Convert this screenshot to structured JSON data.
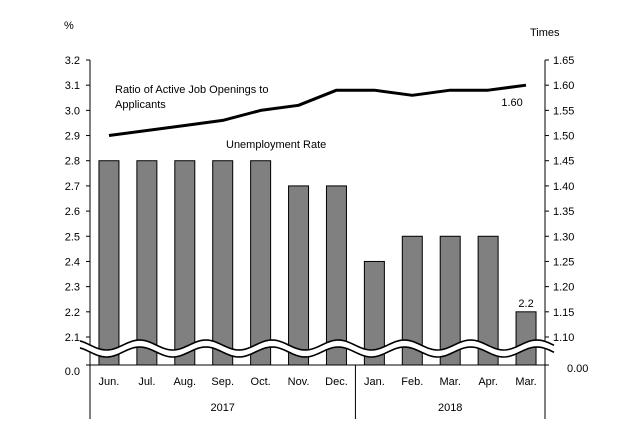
{
  "chart_data": {
    "type": "bar+line",
    "categories": [
      "Jun.",
      "Jul.",
      "Aug.",
      "Sep.",
      "Oct.",
      "Nov.",
      "Dec.",
      "Jan.",
      "Feb.",
      "Mar.",
      "Apr.",
      "Mar."
    ],
    "year_groups": [
      {
        "label": "2017",
        "start": 0,
        "end": 6
      },
      {
        "label": "2018",
        "start": 7,
        "end": 11
      }
    ],
    "left_axis": {
      "unit": "%",
      "ticks": [
        "3.2",
        "3.1",
        "3.0",
        "2.9",
        "2.8",
        "2.7",
        "2.6",
        "2.5",
        "2.4",
        "2.3",
        "2.2",
        "2.1"
      ],
      "zero_label": "0.0",
      "range": [
        2.1,
        3.2
      ],
      "broken": true
    },
    "right_axis": {
      "unit": "Times",
      "ticks": [
        "1.65",
        "1.60",
        "1.55",
        "1.50",
        "1.45",
        "1.40",
        "1.35",
        "1.30",
        "1.25",
        "1.20",
        "1.15",
        "1.10"
      ],
      "zero_label": "0.00",
      "range": [
        1.1,
        1.65
      ],
      "broken": true
    },
    "series": [
      {
        "name": "Unemployment Rate",
        "kind": "bar",
        "axis": "left",
        "color": "#808080",
        "values": [
          2.8,
          2.8,
          2.8,
          2.8,
          2.8,
          2.7,
          2.7,
          2.4,
          2.5,
          2.5,
          2.5,
          2.2
        ]
      },
      {
        "name": "Ratio of Active Job Openings to Applicants",
        "name_lines": [
          "Ratio of Active Job Openings to",
          "Applicants"
        ],
        "kind": "line",
        "axis": "right",
        "color": "#000000",
        "values": [
          1.5,
          1.51,
          1.52,
          1.53,
          1.55,
          1.56,
          1.59,
          1.59,
          1.58,
          1.59,
          1.59,
          1.6
        ]
      }
    ],
    "data_labels": [
      {
        "series": "Unemployment Rate",
        "index": 11,
        "text": "2.2"
      },
      {
        "series": "Ratio of Active Job Openings to Applicants",
        "index": 11,
        "text": "1.60"
      }
    ]
  }
}
